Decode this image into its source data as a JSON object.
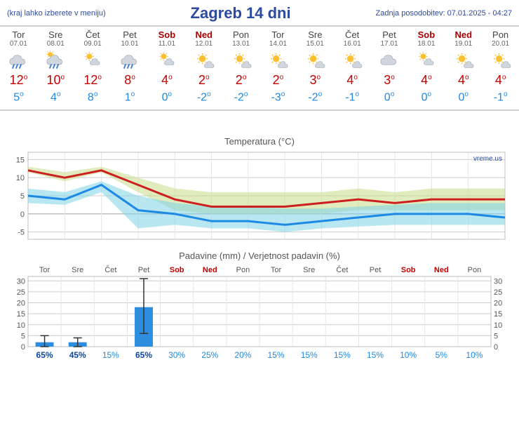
{
  "header": {
    "loc_hint": "(kraj lahko izberete v meniju)",
    "title": "Zagreb 14 dni",
    "updated": "Zadnja posodobitev: 07.01.2025 - 04:27"
  },
  "days": [
    {
      "dow": "Tor",
      "date": "07.01",
      "weekend": false,
      "hi": 12,
      "lo": 5,
      "icon": "rain"
    },
    {
      "dow": "Sre",
      "date": "08.01",
      "weekend": false,
      "hi": 10,
      "lo": 4,
      "icon": "part-sun-rain"
    },
    {
      "dow": "Čet",
      "date": "09.01",
      "weekend": false,
      "hi": 12,
      "lo": 8,
      "icon": "partly-cloudy"
    },
    {
      "dow": "Pet",
      "date": "10.01",
      "weekend": false,
      "hi": 8,
      "lo": 1,
      "icon": "rain"
    },
    {
      "dow": "Sob",
      "date": "11.01",
      "weekend": true,
      "hi": 4,
      "lo": 0,
      "icon": "partly-cloudy"
    },
    {
      "dow": "Ned",
      "date": "12.01",
      "weekend": true,
      "hi": 2,
      "lo": -2,
      "icon": "mostly-sunny"
    },
    {
      "dow": "Pon",
      "date": "13.01",
      "weekend": false,
      "hi": 2,
      "lo": -2,
      "icon": "mostly-sunny"
    },
    {
      "dow": "Tor",
      "date": "14.01",
      "weekend": false,
      "hi": 2,
      "lo": -3,
      "icon": "mostly-sunny"
    },
    {
      "dow": "Sre",
      "date": "15.01",
      "weekend": false,
      "hi": 3,
      "lo": -2,
      "icon": "mostly-sunny"
    },
    {
      "dow": "Čet",
      "date": "16.01",
      "weekend": false,
      "hi": 4,
      "lo": -1,
      "icon": "mostly-sunny"
    },
    {
      "dow": "Pet",
      "date": "17.01",
      "weekend": false,
      "hi": 3,
      "lo": 0,
      "icon": "cloudy"
    },
    {
      "dow": "Sob",
      "date": "18.01",
      "weekend": true,
      "hi": 4,
      "lo": 0,
      "icon": "partly-cloudy"
    },
    {
      "dow": "Ned",
      "date": "19.01",
      "weekend": true,
      "hi": 4,
      "lo": 0,
      "icon": "mostly-sunny"
    },
    {
      "dow": "Pon",
      "date": "20.01",
      "weekend": false,
      "hi": 4,
      "lo": -1,
      "icon": "mostly-sunny"
    }
  ],
  "temp_chart": {
    "title": "Temperatura (°C)",
    "attrib": "vreme.us",
    "ylim": [
      -7,
      17
    ],
    "yticks": [
      -5,
      0,
      5,
      10,
      15
    ],
    "hi_band_upper": [
      13,
      11.5,
      13,
      10,
      7,
      6,
      6,
      6,
      6,
      7,
      6,
      7,
      7,
      7
    ],
    "hi_band_lower": [
      11.5,
      9,
      11.5,
      6,
      1,
      0,
      0,
      0,
      0,
      1,
      1,
      1,
      1,
      1
    ],
    "hi_line": [
      12,
      10,
      12,
      8,
      4,
      2,
      2,
      2,
      3,
      4,
      3,
      4,
      4,
      4
    ],
    "lo_band_upper": [
      7,
      6,
      9,
      5,
      3,
      2,
      2,
      1.5,
      1.5,
      2,
      2.5,
      3,
      3,
      3
    ],
    "lo_band_lower": [
      3,
      2.5,
      6,
      -4,
      -3,
      -4,
      -4,
      -5,
      -4,
      -3.5,
      -3,
      -3,
      -3,
      -3
    ],
    "lo_line": [
      5,
      4,
      8,
      1,
      0,
      -2,
      -2,
      -3,
      -2,
      -1,
      0,
      0,
      0,
      -1
    ],
    "colors": {
      "hi_line": "#cc2020",
      "lo_line": "#1e88e5",
      "hi_band": "#c6dd88",
      "lo_band": "#7dd3e8",
      "grid": "#cccccc",
      "zero": "#aaaaaa",
      "bg": "#ffffff"
    }
  },
  "precip_chart": {
    "title": "Padavine (mm) / Verjetnost padavin (%)",
    "ylim": [
      0,
      32
    ],
    "yticks": [
      0,
      5,
      10,
      15,
      20,
      25,
      30
    ],
    "precip_mm": [
      2,
      2,
      0,
      18,
      0,
      0,
      0,
      0,
      0,
      0,
      0,
      0,
      0,
      0
    ],
    "err_low": [
      0,
      0,
      null,
      6,
      null,
      null,
      null,
      null,
      null,
      null,
      null,
      null,
      null,
      null
    ],
    "err_high": [
      5,
      4,
      null,
      31,
      null,
      null,
      null,
      null,
      null,
      null,
      null,
      null,
      null,
      null
    ],
    "prob_pct": [
      65,
      45,
      15,
      65,
      30,
      25,
      20,
      15,
      15,
      15,
      15,
      10,
      5,
      10
    ],
    "bar_color": "#2d8ee0",
    "bold_threshold": 45
  }
}
